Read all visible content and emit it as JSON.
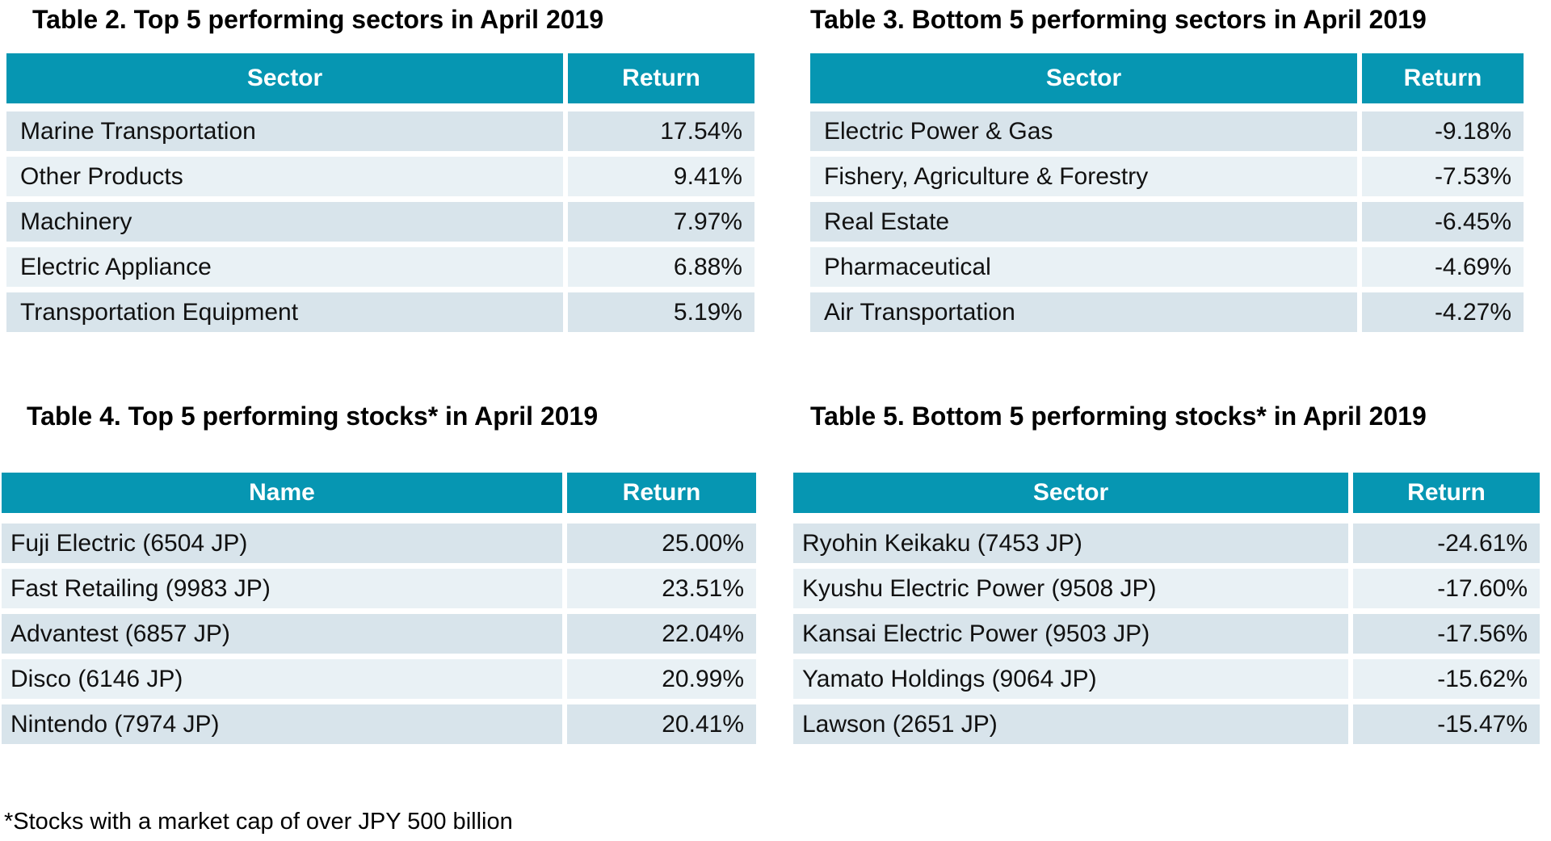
{
  "colors": {
    "header_bg": "#0696B2",
    "header_text": "#FFFFFF",
    "row_odd": "#D8E4EB",
    "row_even": "#E9F1F5",
    "body_text": "#111111",
    "title_text": "#000000"
  },
  "tables": [
    {
      "id": "table-2",
      "title": "Table 2. Top 5 performing sectors in April 2019",
      "columns": [
        "Sector",
        "Return"
      ],
      "rows": [
        [
          "Marine Transportation",
          "17.54%"
        ],
        [
          "Other Products",
          "9.41%"
        ],
        [
          "Machinery",
          "7.97%"
        ],
        [
          "Electric Appliance",
          "6.88%"
        ],
        [
          "Transportation Equipment",
          "5.19%"
        ]
      ]
    },
    {
      "id": "table-3",
      "title": "Table 3. Bottom 5 performing sectors in April 2019",
      "columns": [
        "Sector",
        "Return"
      ],
      "rows": [
        [
          "Electric Power & Gas",
          "-9.18%"
        ],
        [
          "Fishery, Agriculture & Forestry",
          "-7.53%"
        ],
        [
          "Real Estate",
          "-6.45%"
        ],
        [
          "Pharmaceutical",
          "-4.69%"
        ],
        [
          "Air Transportation",
          "-4.27%"
        ]
      ]
    },
    {
      "id": "table-4",
      "title": "Table 4. Top 5 performing stocks* in April 2019",
      "columns": [
        "Name",
        "Return"
      ],
      "rows": [
        [
          "Fuji Electric (6504 JP)",
          "25.00%"
        ],
        [
          "Fast Retailing (9983 JP)",
          "23.51%"
        ],
        [
          "Advantest (6857 JP)",
          "22.04%"
        ],
        [
          "Disco (6146 JP)",
          "20.99%"
        ],
        [
          "Nintendo (7974 JP)",
          "20.41%"
        ]
      ]
    },
    {
      "id": "table-5",
      "title": "Table 5. Bottom 5 performing stocks* in April 2019",
      "columns": [
        "Sector",
        "Return"
      ],
      "rows": [
        [
          "Ryohin Keikaku (7453 JP)",
          "-24.61%"
        ],
        [
          "Kyushu Electric Power (9508 JP)",
          "-17.60%"
        ],
        [
          "Kansai Electric Power (9503 JP)",
          "-17.56%"
        ],
        [
          "Yamato Holdings (9064 JP)",
          "-15.62%"
        ],
        [
          "Lawson (2651 JP)",
          "-15.47%"
        ]
      ]
    }
  ],
  "footnote": "*Stocks with a market cap of over JPY 500 billion"
}
